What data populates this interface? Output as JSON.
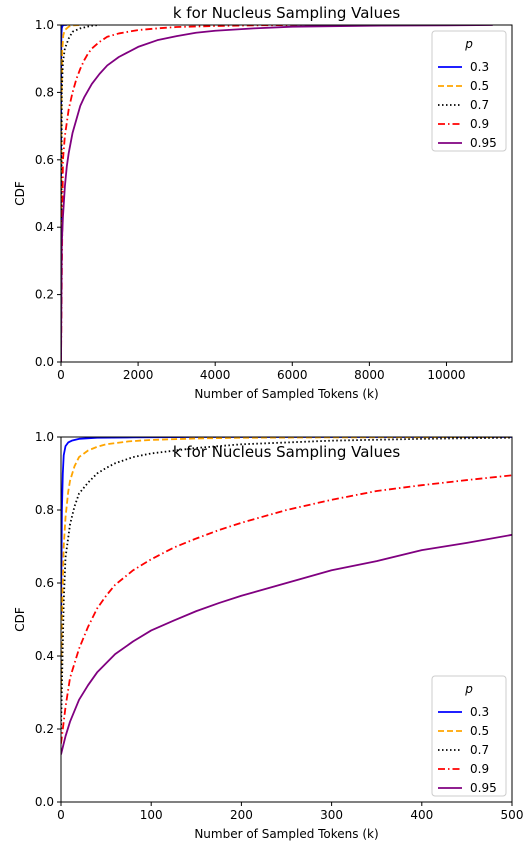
{
  "chart_data": [
    {
      "type": "line",
      "title": "k for Nucleus Sampling Values",
      "xlabel": "Number of Sampled Tokens (k)",
      "ylabel": "CDF",
      "xlim": [
        0,
        11700
      ],
      "ylim": [
        0,
        1.0
      ],
      "xticks": [
        "0",
        "2000",
        "4000",
        "6000",
        "8000",
        "10000"
      ],
      "yticks": [
        "0.0",
        "0.2",
        "0.4",
        "0.6",
        "0.8",
        "1.0"
      ],
      "grid": false,
      "legend": {
        "title": "p",
        "placement": "top-right"
      },
      "series": [
        {
          "name": "0.3",
          "color": "#0000ff",
          "dash": "solid",
          "x": [
            0,
            5,
            10,
            20,
            40,
            80,
            150
          ],
          "y": [
            0,
            0.9,
            0.97,
            0.99,
            0.998,
            1.0,
            1.0
          ]
        },
        {
          "name": "0.5",
          "color": "#ffa500",
          "dash": "dashed",
          "x": [
            0,
            10,
            30,
            60,
            100,
            200,
            300,
            500
          ],
          "y": [
            0,
            0.75,
            0.92,
            0.97,
            0.985,
            0.995,
            0.999,
            1.0
          ]
        },
        {
          "name": "0.7",
          "color": "#000000",
          "dash": "dotted",
          "x": [
            0,
            20,
            50,
            100,
            200,
            300,
            500,
            800,
            1000
          ],
          "y": [
            0,
            0.8,
            0.89,
            0.93,
            0.96,
            0.98,
            0.99,
            0.998,
            1.0
          ]
        },
        {
          "name": "0.9",
          "color": "#ff0000",
          "dash": "dashdot",
          "x": [
            0,
            50,
            100,
            200,
            300,
            400,
            500,
            600,
            700,
            800,
            1000,
            1200,
            1500,
            2000,
            2500,
            3000,
            4000,
            5000,
            6000,
            7000
          ],
          "y": [
            0,
            0.6,
            0.67,
            0.75,
            0.8,
            0.84,
            0.87,
            0.895,
            0.915,
            0.93,
            0.95,
            0.965,
            0.975,
            0.985,
            0.99,
            0.994,
            0.997,
            0.999,
            1.0,
            1.0
          ]
        },
        {
          "name": "0.95",
          "color": "#800080",
          "dash": "solid",
          "x": [
            0,
            20,
            50,
            100,
            150,
            200,
            300,
            400,
            500,
            600,
            700,
            800,
            1000,
            1200,
            1500,
            2000,
            2500,
            3000,
            3500,
            4000,
            5000,
            6000,
            8000,
            10000,
            11200
          ],
          "y": [
            0,
            0.35,
            0.43,
            0.52,
            0.58,
            0.62,
            0.68,
            0.72,
            0.76,
            0.785,
            0.805,
            0.825,
            0.855,
            0.88,
            0.905,
            0.935,
            0.955,
            0.967,
            0.977,
            0.983,
            0.99,
            0.995,
            0.998,
            0.999,
            1.0
          ]
        }
      ]
    },
    {
      "type": "line",
      "title": "k for Nucleus Sampling Values",
      "xlabel": "Number of Sampled Tokens (k)",
      "ylabel": "CDF",
      "xlim": [
        0,
        500
      ],
      "ylim": [
        0,
        1.0
      ],
      "xticks": [
        "0",
        "100",
        "200",
        "300",
        "400",
        "500"
      ],
      "yticks": [
        "0.0",
        "0.2",
        "0.4",
        "0.6",
        "0.8",
        "1.0"
      ],
      "grid": false,
      "legend": {
        "title": "p",
        "placement": "bottom-right"
      },
      "series": [
        {
          "name": "0.3",
          "color": "#0000ff",
          "dash": "solid",
          "x": [
            0,
            1,
            2,
            3,
            5,
            8,
            12,
            20,
            40,
            80,
            150,
            500
          ],
          "y": [
            0.5,
            0.8,
            0.9,
            0.95,
            0.975,
            0.985,
            0.99,
            0.995,
            0.998,
            0.999,
            1.0,
            1.0
          ]
        },
        {
          "name": "0.5",
          "color": "#ffa500",
          "dash": "dashed",
          "x": [
            0,
            1,
            3,
            5,
            8,
            10,
            15,
            20,
            30,
            40,
            50,
            75,
            100,
            150,
            200,
            300,
            500
          ],
          "y": [
            0.3,
            0.5,
            0.7,
            0.78,
            0.85,
            0.88,
            0.92,
            0.945,
            0.963,
            0.973,
            0.98,
            0.988,
            0.992,
            0.996,
            0.998,
            0.999,
            1.0
          ]
        },
        {
          "name": "0.7",
          "color": "#000000",
          "dash": "dotted",
          "x": [
            0,
            3,
            5,
            10,
            15,
            20,
            30,
            40,
            50,
            60,
            80,
            100,
            150,
            200,
            300,
            400,
            500
          ],
          "y": [
            0.2,
            0.55,
            0.67,
            0.76,
            0.81,
            0.845,
            0.875,
            0.9,
            0.915,
            0.928,
            0.945,
            0.955,
            0.97,
            0.98,
            0.99,
            0.995,
            0.998
          ]
        },
        {
          "name": "0.9",
          "color": "#ff0000",
          "dash": "dashdot",
          "x": [
            0,
            5,
            10,
            20,
            30,
            40,
            50,
            60,
            80,
            100,
            125,
            150,
            175,
            200,
            250,
            300,
            350,
            400,
            450,
            500
          ],
          "y": [
            0.16,
            0.26,
            0.34,
            0.42,
            0.48,
            0.53,
            0.565,
            0.595,
            0.635,
            0.665,
            0.697,
            0.722,
            0.745,
            0.765,
            0.8,
            0.828,
            0.852,
            0.868,
            0.882,
            0.895
          ]
        },
        {
          "name": "0.95",
          "color": "#800080",
          "dash": "solid",
          "x": [
            0,
            5,
            10,
            20,
            30,
            40,
            50,
            60,
            80,
            100,
            125,
            150,
            175,
            200,
            250,
            300,
            350,
            400,
            450,
            500
          ],
          "y": [
            0.13,
            0.18,
            0.22,
            0.28,
            0.32,
            0.355,
            0.38,
            0.405,
            0.44,
            0.47,
            0.497,
            0.523,
            0.545,
            0.565,
            0.6,
            0.635,
            0.66,
            0.69,
            0.71,
            0.732
          ]
        }
      ]
    }
  ]
}
